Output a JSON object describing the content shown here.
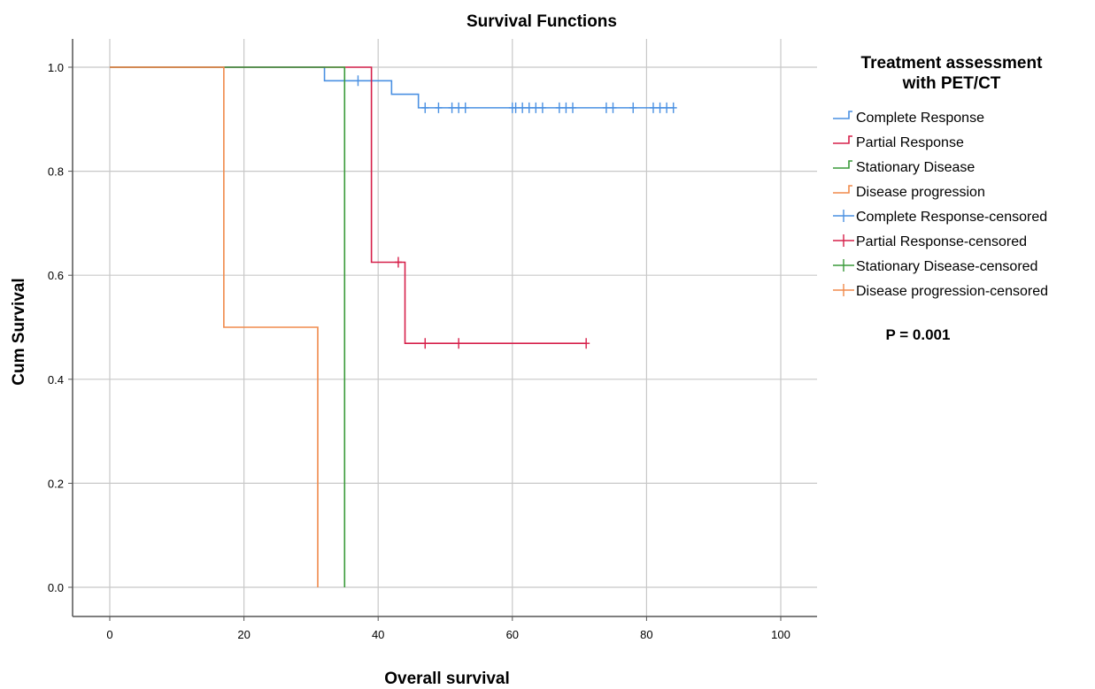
{
  "chart_data": {
    "type": "line",
    "subtype": "kaplan-meier",
    "title": "Survival Functions",
    "xlabel": "Overall survival",
    "ylabel": "Cum Survival",
    "xlim": [
      -5,
      105
    ],
    "ylim": [
      -0.05,
      1.06
    ],
    "x_ticks": [
      0,
      20,
      40,
      60,
      80,
      100
    ],
    "y_ticks": [
      0.0,
      0.2,
      0.4,
      0.6,
      0.8,
      1.0
    ],
    "x_tick_labels": [
      "0",
      "20",
      "40",
      "60",
      "80",
      "100"
    ],
    "y_tick_labels": [
      "0.0",
      "0.2",
      "0.4",
      "0.6",
      "0.8",
      "1.0"
    ],
    "grid": true,
    "legend_title": "Treatment assessment with PET/CT",
    "legend_title_lines": [
      "Treatment assessment",
      "with PET/CT"
    ],
    "legend_placement": "right",
    "annotation": "P = 0.001",
    "series": [
      {
        "name": "Complete Response",
        "censored_name": "Complete Response-censored",
        "color": "#4a90e2",
        "steps": [
          [
            0,
            1.0
          ],
          [
            32,
            0.974
          ],
          [
            42,
            0.948
          ],
          [
            46,
            0.922
          ],
          [
            84,
            0.922
          ]
        ],
        "censored": [
          [
            37,
            0.974
          ],
          [
            47,
            0.922
          ],
          [
            49,
            0.922
          ],
          [
            51,
            0.922
          ],
          [
            52,
            0.922
          ],
          [
            53,
            0.922
          ],
          [
            60,
            0.922
          ],
          [
            60.5,
            0.922
          ],
          [
            61.5,
            0.922
          ],
          [
            62.5,
            0.922
          ],
          [
            63.5,
            0.922
          ],
          [
            64.5,
            0.922
          ],
          [
            67,
            0.922
          ],
          [
            68,
            0.922
          ],
          [
            69,
            0.922
          ],
          [
            74,
            0.922
          ],
          [
            75,
            0.922
          ],
          [
            78,
            0.922
          ],
          [
            81,
            0.922
          ],
          [
            82,
            0.922
          ],
          [
            83,
            0.922
          ],
          [
            84,
            0.922
          ]
        ]
      },
      {
        "name": "Partial Response",
        "censored_name": "Partial Response-censored",
        "color": "#d6204a",
        "steps": [
          [
            0,
            1.0
          ],
          [
            39,
            0.625
          ],
          [
            44,
            0.469
          ],
          [
            71,
            0.469
          ]
        ],
        "censored": [
          [
            43,
            0.625
          ],
          [
            47,
            0.469
          ],
          [
            52,
            0.469
          ],
          [
            71,
            0.469
          ]
        ]
      },
      {
        "name": "Stationary Disease",
        "censored_name": "Stationary Disease-censored",
        "color": "#3a9a3a",
        "steps": [
          [
            0,
            1.0
          ],
          [
            35,
            0.0
          ]
        ],
        "censored": []
      },
      {
        "name": "Disease progression",
        "censored_name": "Disease progression-censored",
        "color": "#f08a4b",
        "steps": [
          [
            0,
            1.0
          ],
          [
            17,
            0.5
          ],
          [
            31,
            0.0
          ]
        ],
        "censored": []
      }
    ]
  }
}
